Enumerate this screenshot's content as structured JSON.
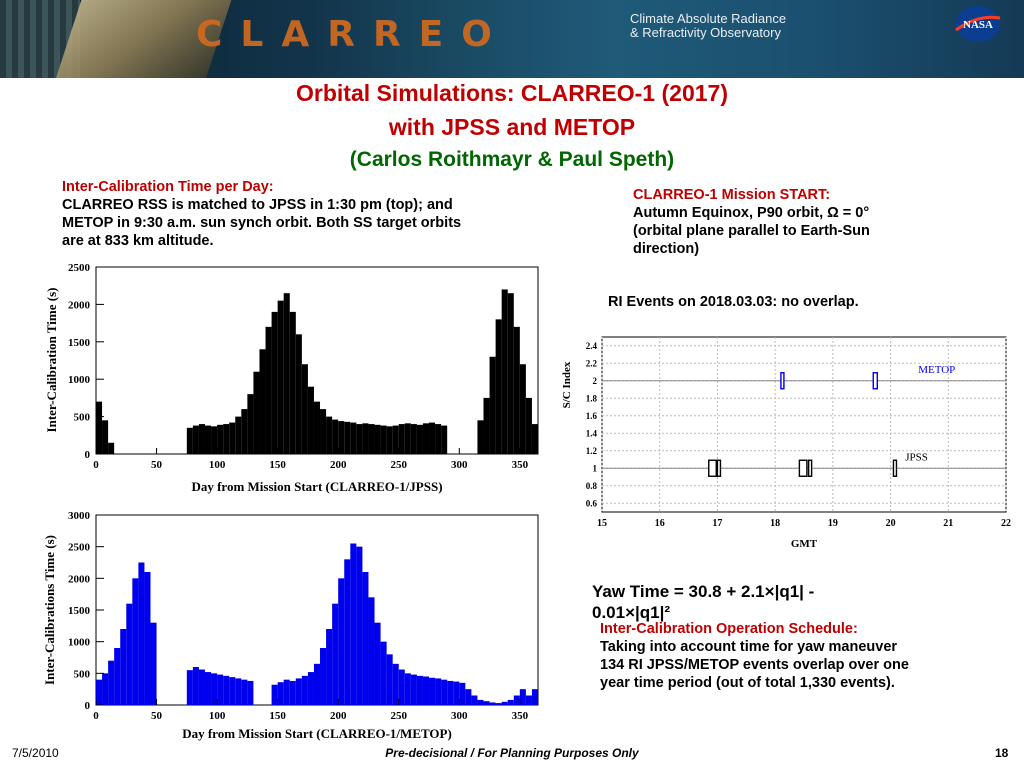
{
  "header": {
    "logo_text": "CLARREO",
    "observatory_line1": "Climate Absolute Radiance",
    "observatory_line2": "& Refractivity Observatory",
    "nasa_logo": "NASA"
  },
  "title": {
    "line1": "Orbital Simulations: CLARREO-1 (2017)",
    "line2": "with JPSS and METOP",
    "line3": "(Carlos Roithmayr & Paul Speth)"
  },
  "left_text": {
    "heading": "Inter-Calibration Time per Day:",
    "body_line1": "CLARREO RSS is matched to JPSS in 1:30 pm (top); and",
    "body_line2": "METOP in 9:30 a.m. sun synch orbit. Both SS target orbits",
    "body_line3": "are at 833 km altitude."
  },
  "right_text": {
    "heading": "CLARREO-1 Mission START:",
    "line1": "Autumn Equinox, P90 orbit, Ω = 0°",
    "line2": "(orbital plane parallel to Earth-Sun",
    "line3": "direction)",
    "ri_events": "RI Events on 2018.03.03: no overlap."
  },
  "yaw": {
    "line1": "Yaw Time = 30.8 + 2.1×|q1| -",
    "line2": "0.01×|q1|²"
  },
  "schedule": {
    "heading": "Inter-Calibration Operation Schedule:",
    "line1": "Taking into account time for yaw maneuver",
    "line2": "134 RI JPSS/METOP events overlap over one",
    "line3": "year time period (out of total 1,330 events)."
  },
  "footer": {
    "date": "7/5/2010",
    "center": "Pre-decisional / For Planning Purposes Only",
    "page": "18"
  },
  "colors": {
    "title_red": "#c00000",
    "title_green": "#006600",
    "jpss_bars": "#000000",
    "metop_bars": "#0000ee",
    "metop_marker": "#0000ee"
  },
  "chart_data": [
    {
      "type": "bar",
      "ylabel": "Inter-Calibration Time (s)",
      "xlabel": "Day from Mission Start (CLARREO-1/JPSS)",
      "xlim": [
        0,
        365
      ],
      "ylim": [
        0,
        2500
      ],
      "xticks": [
        0,
        50,
        100,
        150,
        200,
        250,
        300,
        350
      ],
      "yticks": [
        0,
        500,
        1000,
        1500,
        2000,
        2500
      ],
      "x": [
        0,
        5,
        10,
        15,
        20,
        25,
        30,
        35,
        40,
        45,
        50,
        55,
        60,
        65,
        70,
        75,
        80,
        85,
        90,
        95,
        100,
        105,
        110,
        115,
        120,
        125,
        130,
        135,
        140,
        145,
        150,
        155,
        160,
        165,
        170,
        175,
        180,
        185,
        190,
        195,
        200,
        205,
        210,
        215,
        220,
        225,
        230,
        235,
        240,
        245,
        250,
        255,
        260,
        265,
        270,
        275,
        280,
        285,
        290,
        295,
        300,
        305,
        310,
        315,
        320,
        325,
        330,
        335,
        340,
        345,
        350,
        355,
        360
      ],
      "values": [
        700,
        450,
        150,
        0,
        0,
        0,
        0,
        0,
        0,
        0,
        0,
        0,
        0,
        0,
        0,
        350,
        380,
        400,
        380,
        370,
        390,
        400,
        420,
        500,
        600,
        800,
        1100,
        1400,
        1700,
        1900,
        2050,
        2150,
        1900,
        1600,
        1200,
        900,
        700,
        600,
        500,
        460,
        440,
        430,
        420,
        400,
        410,
        400,
        390,
        380,
        370,
        380,
        400,
        410,
        400,
        390,
        410,
        420,
        400,
        380,
        0,
        0,
        0,
        0,
        0,
        450,
        750,
        1300,
        1800,
        2200,
        2150,
        1700,
        1200,
        750,
        400
      ]
    },
    {
      "type": "bar",
      "ylabel": "Inter-Calibrations Time (s)",
      "xlabel": "Day from Mission Start (CLARREO-1/METOP)",
      "xlim": [
        0,
        365
      ],
      "ylim": [
        0,
        3000
      ],
      "xticks": [
        0,
        50,
        100,
        150,
        200,
        250,
        300,
        350
      ],
      "yticks": [
        0,
        500,
        1000,
        1500,
        2000,
        2500,
        3000
      ],
      "x": [
        0,
        5,
        10,
        15,
        20,
        25,
        30,
        35,
        40,
        45,
        50,
        55,
        60,
        65,
        70,
        75,
        80,
        85,
        90,
        95,
        100,
        105,
        110,
        115,
        120,
        125,
        130,
        135,
        140,
        145,
        150,
        155,
        160,
        165,
        170,
        175,
        180,
        185,
        190,
        195,
        200,
        205,
        210,
        215,
        220,
        225,
        230,
        235,
        240,
        245,
        250,
        255,
        260,
        265,
        270,
        275,
        280,
        285,
        290,
        295,
        300,
        305,
        310,
        315,
        320,
        325,
        330,
        335,
        340,
        345,
        350,
        355,
        360
      ],
      "values": [
        400,
        500,
        700,
        900,
        1200,
        1600,
        2000,
        2250,
        2100,
        1300,
        0,
        0,
        0,
        0,
        0,
        550,
        600,
        560,
        520,
        500,
        480,
        460,
        440,
        420,
        400,
        380,
        0,
        0,
        0,
        320,
        360,
        400,
        380,
        420,
        460,
        520,
        650,
        900,
        1200,
        1600,
        2000,
        2300,
        2550,
        2500,
        2100,
        1700,
        1300,
        1000,
        800,
        650,
        560,
        500,
        480,
        460,
        450,
        430,
        420,
        400,
        380,
        370,
        350,
        250,
        150,
        80,
        60,
        40,
        30,
        50,
        80,
        150,
        250,
        150,
        250
      ]
    },
    {
      "type": "scatter",
      "ylabel": "S/C Index",
      "xlabel": "GMT",
      "xlim": [
        15,
        22
      ],
      "ylim": [
        0.5,
        2.5
      ],
      "xticks": [
        15,
        16,
        17,
        18,
        19,
        20,
        21,
        22
      ],
      "yticks": [
        0.6,
        0.8,
        1,
        1.2,
        1.4,
        1.6,
        1.8,
        2,
        2.2,
        2.4
      ],
      "grid": true,
      "series": [
        {
          "name": "METOP",
          "y": 2,
          "events": [
            [
              18.1,
              18.15
            ],
            [
              19.7,
              19.77
            ]
          ]
        },
        {
          "name": "JPSS",
          "y": 1,
          "events": [
            [
              16.85,
              16.98
            ],
            [
              17.0,
              17.05
            ],
            [
              18.42,
              18.55
            ],
            [
              18.58,
              18.63
            ],
            [
              20.05,
              20.1
            ]
          ]
        }
      ]
    }
  ]
}
